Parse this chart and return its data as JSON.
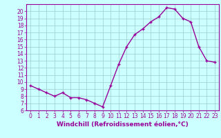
{
  "x": [
    0,
    1,
    2,
    3,
    4,
    5,
    6,
    7,
    8,
    9,
    10,
    11,
    12,
    13,
    14,
    15,
    16,
    17,
    18,
    19,
    20,
    21,
    22,
    23
  ],
  "y": [
    9.5,
    9.0,
    8.5,
    8.0,
    8.5,
    7.8,
    7.8,
    7.5,
    7.0,
    6.5,
    9.5,
    12.5,
    15.0,
    16.7,
    17.5,
    18.5,
    19.2,
    20.5,
    20.3,
    19.0,
    18.5,
    15.0,
    13.0,
    12.8
  ],
  "line_color": "#990099",
  "marker": "+",
  "marker_color": "#990099",
  "bg_color": "#ccffff",
  "grid_color": "#99cccc",
  "xlabel": "Windchill (Refroidissement éolien,°C)",
  "ylim": [
    6,
    21
  ],
  "xlim": [
    -0.5,
    23.5
  ],
  "yticks": [
    6,
    7,
    8,
    9,
    10,
    11,
    12,
    13,
    14,
    15,
    16,
    17,
    18,
    19,
    20
  ],
  "xticks": [
    0,
    1,
    2,
    3,
    4,
    5,
    6,
    7,
    8,
    9,
    10,
    11,
    12,
    13,
    14,
    15,
    16,
    17,
    18,
    19,
    20,
    21,
    22,
    23
  ],
  "font_color": "#990099",
  "tick_fontsize": 5.5,
  "label_fontsize": 6.5,
  "line_width": 1.0,
  "marker_size": 3.5
}
